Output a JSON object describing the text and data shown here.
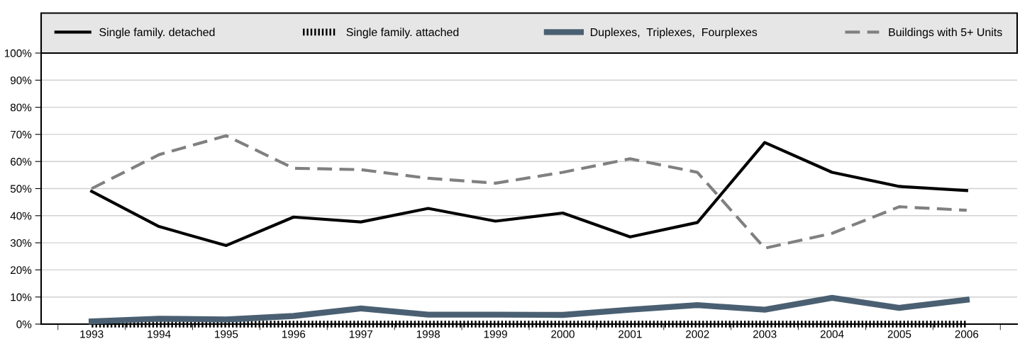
{
  "chart_data": {
    "type": "line",
    "categories": [
      "1993",
      "1994",
      "1995",
      "1996",
      "1997",
      "1998",
      "1999",
      "2000",
      "2001",
      "2002",
      "2003",
      "2004",
      "2005",
      "2006"
    ],
    "series": [
      {
        "name": "Single family. detached",
        "color": "#000000",
        "line_style": "solid",
        "values": [
          49,
          36,
          29,
          39.5,
          37.7,
          42.7,
          38,
          41,
          32.2,
          37.5,
          67,
          56,
          50.8,
          49.3
        ]
      },
      {
        "name": "Single family. attached",
        "color": "#000000",
        "line_style": "dotted",
        "values": [
          0,
          0,
          0,
          0,
          0,
          0,
          0,
          0,
          0,
          0,
          0,
          0,
          0,
          0
        ]
      },
      {
        "name": "Duplexes,  Triplexes,  Fourplexes",
        "color": "#4a6072",
        "line_style": "solid",
        "values": [
          1,
          2,
          1.7,
          3,
          5.8,
          3.5,
          3.5,
          3.4,
          5.3,
          7,
          5.3,
          9.7,
          6,
          9
        ]
      },
      {
        "name": "Buildings with 5+ Units",
        "color": "#808080",
        "line_style": "dashed",
        "values": [
          50,
          62.5,
          69.5,
          57.5,
          57,
          53.8,
          52,
          56,
          61,
          56,
          28,
          33.5,
          43.3,
          42
        ]
      }
    ],
    "ylim": [
      0,
      100
    ],
    "yticks": [
      {
        "value": 0,
        "label": "0%"
      },
      {
        "value": 10,
        "label": "10%"
      },
      {
        "value": 20,
        "label": "20%"
      },
      {
        "value": 30,
        "label": "30%"
      },
      {
        "value": 40,
        "label": "40%"
      },
      {
        "value": 50,
        "label": "50%"
      },
      {
        "value": 60,
        "label": "60%"
      },
      {
        "value": 70,
        "label": "70%"
      },
      {
        "value": 80,
        "label": "80%"
      },
      {
        "value": 90,
        "label": "90%"
      },
      {
        "value": 100,
        "label": "100%"
      }
    ],
    "grid": "y",
    "legend": "top",
    "marker": "none"
  }
}
